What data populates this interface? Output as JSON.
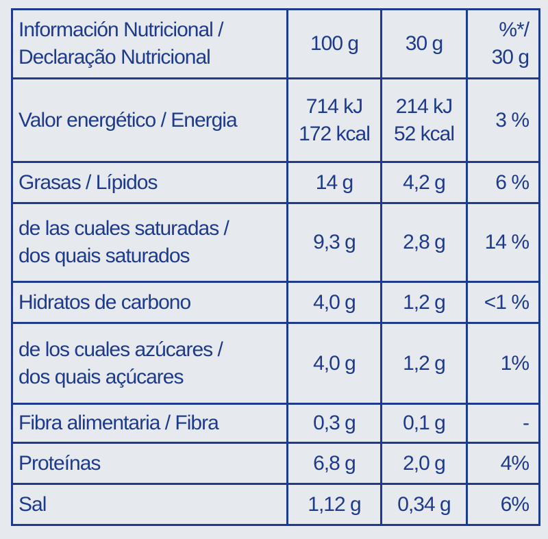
{
  "table": {
    "header": [
      [
        "Información Nutricional /",
        "Declaração Nutricional"
      ],
      [
        "100 g"
      ],
      [
        "30 g"
      ],
      [
        "%*/",
        "30 g"
      ]
    ],
    "rows": [
      [
        [
          "Valor energético / Energia"
        ],
        [
          "714 kJ",
          "172 kcal"
        ],
        [
          "214 kJ",
          "52 kcal"
        ],
        [
          "3 %"
        ]
      ],
      [
        [
          "Grasas / Lípidos"
        ],
        [
          "14 g"
        ],
        [
          "4,2 g"
        ],
        [
          "6 %"
        ]
      ],
      [
        [
          "de las cuales saturadas /",
          "dos quais saturados"
        ],
        [
          "9,3 g"
        ],
        [
          "2,8 g"
        ],
        [
          "14 %"
        ]
      ],
      [
        [
          "Hidratos de carbono"
        ],
        [
          "4,0 g"
        ],
        [
          "1,2 g"
        ],
        [
          "<1 %"
        ]
      ],
      [
        [
          "de los cuales azúcares /",
          "dos quais açúcares"
        ],
        [
          "4,0 g"
        ],
        [
          "1,2 g"
        ],
        [
          "1%"
        ]
      ],
      [
        [
          "Fibra alimentaria / Fibra"
        ],
        [
          "0,3 g"
        ],
        [
          "0,1 g"
        ],
        [
          "-"
        ]
      ],
      [
        [
          "Proteínas"
        ],
        [
          "6,8 g"
        ],
        [
          "2,0 g"
        ],
        [
          "4%"
        ]
      ],
      [
        [
          "Sal"
        ],
        [
          "1,12 g"
        ],
        [
          "0,34 g"
        ],
        [
          "6%"
        ]
      ]
    ]
  }
}
